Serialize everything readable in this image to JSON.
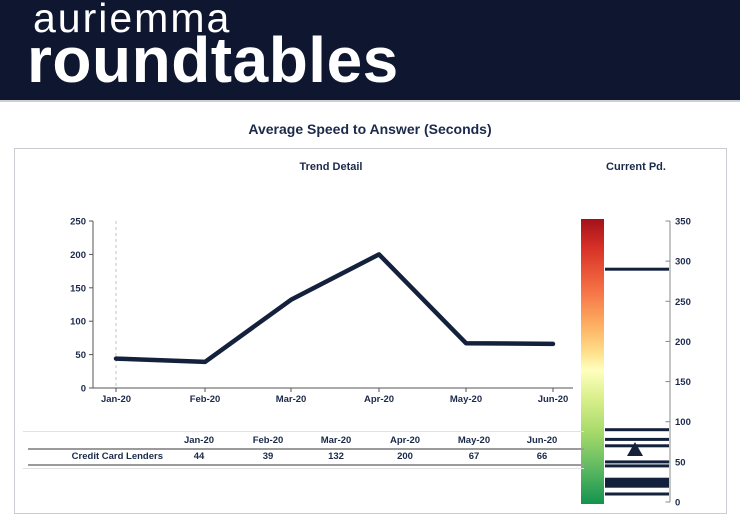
{
  "header": {
    "brand_line1": "auriemma",
    "brand_line2": "roundtables"
  },
  "page_title": "Average Speed to Answer (Seconds)",
  "panel": {
    "trend_title": "Trend Detail",
    "current_title": "Current Pd."
  },
  "table": {
    "columns": [
      "Jan-20",
      "Feb-20",
      "Mar-20",
      "Apr-20",
      "May-20",
      "Jun-20"
    ],
    "rows": [
      {
        "label": "Credit Card Lenders",
        "values": [
          "44",
          "39",
          "132",
          "200",
          "67",
          "66"
        ]
      }
    ]
  },
  "colors": {
    "header_bg": "#0e1630",
    "text_navy": "#1b2a4a",
    "line_navy": "#14213d",
    "axis_gray": "#555555",
    "gauge_axis_gray": "#888888",
    "grid_dash": "#c6c6c6",
    "panel_border": "#c9ccd1"
  },
  "chart_data": [
    {
      "type": "line",
      "title": "Trend Detail",
      "categories": [
        "Jan-20",
        "Feb-20",
        "Mar-20",
        "Apr-20",
        "May-20",
        "Jun-20"
      ],
      "series": [
        {
          "name": "Credit Card Lenders",
          "values": [
            44,
            39,
            132,
            200,
            67,
            66
          ]
        }
      ],
      "ylim": [
        0,
        250
      ],
      "ytick_step": 50,
      "grid": "dashed-vertical-at-first-category",
      "legend": "none",
      "line_color": "#14213d"
    },
    {
      "type": "distribution-gauge",
      "title": "Current Pd.",
      "ylim": [
        0,
        350
      ],
      "ytick_step": 50,
      "marker_value": 66,
      "peer_line_values": [
        290,
        90,
        78,
        70,
        50,
        45,
        10
      ],
      "thick_band": {
        "center": 24,
        "thickness": 12
      },
      "marker_color": "#14213d",
      "gradient_stops": [
        {
          "offset": 0.0,
          "color": "#a31119"
        },
        {
          "offset": 0.1,
          "color": "#d73027"
        },
        {
          "offset": 0.24,
          "color": "#f46d43"
        },
        {
          "offset": 0.37,
          "color": "#fdae61"
        },
        {
          "offset": 0.47,
          "color": "#fee08b"
        },
        {
          "offset": 0.53,
          "color": "#ffffbf"
        },
        {
          "offset": 0.63,
          "color": "#d9ef8b"
        },
        {
          "offset": 0.75,
          "color": "#a6d96a"
        },
        {
          "offset": 0.86,
          "color": "#66bd63"
        },
        {
          "offset": 1.0,
          "color": "#13934f"
        }
      ]
    }
  ]
}
